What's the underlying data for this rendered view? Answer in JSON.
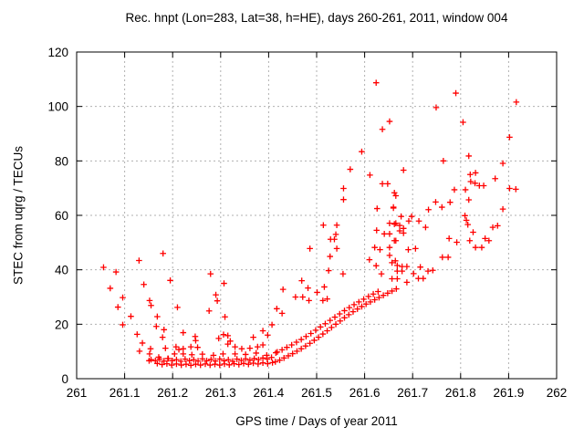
{
  "chart_data": {
    "type": "scatter",
    "title": "Rec. hnpt (Lon=283, Lat=38, h=HE), days 260-261, 2011, window 004",
    "xlabel": "GPS time / Days of year 2011",
    "ylabel": "STEC from uqrg / TECUs",
    "xlim": [
      261,
      262
    ],
    "ylim": [
      0,
      120
    ],
    "xtick_values": [
      261,
      261.1,
      261.2,
      261.3,
      261.4,
      261.5,
      261.6,
      261.7,
      261.8,
      261.9,
      262
    ],
    "xtick_labels": [
      "261",
      "261.1",
      "261.2",
      "261.3",
      "261.4",
      "261.5",
      "261.6",
      "261.7",
      "261.8",
      "261.9",
      "262"
    ],
    "ytick_values": [
      0,
      20,
      40,
      60,
      80,
      100,
      120
    ],
    "ytick_labels": [
      "0",
      "20",
      "40",
      "60",
      "80",
      "100",
      "120"
    ],
    "grid": true,
    "legend": "none",
    "marker": "plus",
    "marker_color": "#ff0000",
    "grid_color": "#b0b0b0",
    "frame_color": "#000000",
    "series": [
      {
        "name": "STEC",
        "points": [
          [
            261.056,
            40.9
          ],
          [
            261.082,
            39.2
          ],
          [
            261.07,
            33.2
          ],
          [
            261.086,
            26.3
          ],
          [
            261.096,
            29.8
          ],
          [
            261.096,
            19.8
          ],
          [
            261.113,
            22.9
          ],
          [
            261.126,
            16.3
          ],
          [
            261.137,
            13.1
          ],
          [
            261.131,
            10.1
          ],
          [
            261.13,
            43.4
          ],
          [
            261.14,
            34.6
          ],
          [
            261.152,
            28.7
          ],
          [
            261.155,
            26.9
          ],
          [
            261.168,
            22.8
          ],
          [
            261.166,
            19.2
          ],
          [
            261.182,
            18.0
          ],
          [
            261.179,
            15.2
          ],
          [
            261.18,
            46.0
          ],
          [
            261.195,
            36.1
          ],
          [
            261.21,
            26.2
          ],
          [
            261.222,
            16.9
          ],
          [
            261.248,
            14.0
          ],
          [
            261.252,
            11.5
          ],
          [
            261.279,
            38.5
          ],
          [
            261.29,
            30.8
          ],
          [
            261.293,
            28.6
          ],
          [
            261.276,
            24.9
          ],
          [
            261.307,
            35.0
          ],
          [
            261.309,
            22.7
          ],
          [
            261.306,
            16.2
          ],
          [
            261.315,
            15.8
          ],
          [
            261.32,
            13.8
          ],
          [
            261.315,
            12.7
          ],
          [
            261.152,
            9.1
          ],
          [
            261.151,
            6.6
          ],
          [
            261.171,
            7.9
          ],
          [
            261.191,
            7.4
          ],
          [
            261.204,
            9.1
          ],
          [
            261.213,
            10.7
          ],
          [
            261.222,
            9.1
          ],
          [
            261.305,
            9.1
          ],
          [
            261.33,
            9.1
          ],
          [
            261.154,
            11.0
          ],
          [
            261.185,
            11.2
          ],
          [
            261.207,
            11.7
          ],
          [
            261.222,
            11.0
          ],
          [
            261.238,
            11.7
          ],
          [
            261.33,
            11.7
          ],
          [
            261.344,
            11.0
          ],
          [
            261.361,
            11.2
          ],
          [
            261.377,
            11.7
          ],
          [
            261.388,
            12.4
          ],
          [
            261.415,
            9.5
          ],
          [
            261.24,
            8.8
          ],
          [
            261.262,
            9.0
          ],
          [
            261.285,
            8.6
          ],
          [
            261.352,
            8.9
          ],
          [
            261.374,
            9.4
          ],
          [
            261.396,
            8.6
          ],
          [
            261.247,
            15.5
          ],
          [
            261.296,
            14.8
          ],
          [
            261.368,
            15.2
          ],
          [
            261.398,
            16.0
          ],
          [
            261.155,
            7.0
          ],
          [
            261.164,
            6.6
          ],
          [
            261.173,
            7.2
          ],
          [
            261.182,
            6.5
          ],
          [
            261.19,
            7.4
          ],
          [
            261.199,
            6.6
          ],
          [
            261.208,
            7.0
          ],
          [
            261.217,
            6.4
          ],
          [
            261.226,
            7.2
          ],
          [
            261.235,
            6.6
          ],
          [
            261.244,
            7.0
          ],
          [
            261.253,
            6.5
          ],
          [
            261.262,
            7.3
          ],
          [
            261.271,
            6.6
          ],
          [
            261.28,
            7.1
          ],
          [
            261.289,
            6.5
          ],
          [
            261.298,
            7.2
          ],
          [
            261.307,
            6.6
          ],
          [
            261.316,
            7.0
          ],
          [
            261.325,
            6.4
          ],
          [
            261.334,
            7.2
          ],
          [
            261.343,
            6.7
          ],
          [
            261.352,
            7.3
          ],
          [
            261.361,
            6.8
          ],
          [
            261.37,
            7.4
          ],
          [
            261.379,
            7.0
          ],
          [
            261.388,
            7.6
          ],
          [
            261.397,
            7.2
          ],
          [
            261.406,
            7.8
          ],
          [
            261.168,
            5.6
          ],
          [
            261.178,
            5.2
          ],
          [
            261.188,
            5.5
          ],
          [
            261.198,
            5.0
          ],
          [
            261.208,
            5.4
          ],
          [
            261.218,
            5.0
          ],
          [
            261.228,
            5.3
          ],
          [
            261.238,
            4.9
          ],
          [
            261.248,
            5.3
          ],
          [
            261.258,
            5.0
          ],
          [
            261.268,
            5.4
          ],
          [
            261.278,
            5.0
          ],
          [
            261.288,
            5.3
          ],
          [
            261.298,
            5.0
          ],
          [
            261.308,
            5.4
          ],
          [
            261.318,
            5.1
          ],
          [
            261.328,
            5.5
          ],
          [
            261.338,
            5.2
          ],
          [
            261.348,
            5.6
          ],
          [
            261.358,
            5.3
          ],
          [
            261.368,
            5.7
          ],
          [
            261.378,
            5.4
          ],
          [
            261.388,
            5.8
          ],
          [
            261.398,
            5.5
          ],
          [
            261.408,
            5.9
          ],
          [
            261.414,
            6.2
          ],
          [
            261.423,
            6.8
          ],
          [
            261.432,
            7.6
          ],
          [
            261.441,
            8.4
          ],
          [
            261.45,
            9.2
          ],
          [
            261.459,
            10.1
          ],
          [
            261.468,
            11.0
          ],
          [
            261.477,
            12.0
          ],
          [
            261.486,
            13.0
          ],
          [
            261.495,
            14.1
          ],
          [
            261.504,
            15.2
          ],
          [
            261.513,
            16.4
          ],
          [
            261.522,
            17.6
          ],
          [
            261.531,
            18.8
          ],
          [
            261.54,
            20.0
          ],
          [
            261.549,
            21.2
          ],
          [
            261.558,
            22.4
          ],
          [
            261.567,
            23.5
          ],
          [
            261.576,
            24.6
          ],
          [
            261.585,
            25.6
          ],
          [
            261.594,
            26.5
          ],
          [
            261.603,
            27.4
          ],
          [
            261.612,
            28.2
          ],
          [
            261.621,
            29.0
          ],
          [
            261.63,
            29.8
          ],
          [
            261.639,
            30.6
          ],
          [
            261.648,
            31.4
          ],
          [
            261.657,
            32.2
          ],
          [
            261.666,
            33.0
          ],
          [
            261.418,
            9.8
          ],
          [
            261.428,
            10.6
          ],
          [
            261.438,
            11.5
          ],
          [
            261.448,
            12.4
          ],
          [
            261.458,
            13.4
          ],
          [
            261.468,
            14.4
          ],
          [
            261.478,
            15.5
          ],
          [
            261.488,
            16.6
          ],
          [
            261.498,
            17.8
          ],
          [
            261.508,
            19.0
          ],
          [
            261.518,
            20.2
          ],
          [
            261.528,
            21.4
          ],
          [
            261.538,
            22.6
          ],
          [
            261.548,
            23.8
          ],
          [
            261.558,
            25.0
          ],
          [
            261.568,
            26.1
          ],
          [
            261.578,
            27.2
          ],
          [
            261.588,
            28.2
          ],
          [
            261.598,
            29.2
          ],
          [
            261.608,
            30.2
          ],
          [
            261.618,
            31.1
          ],
          [
            261.628,
            32.0
          ],
          [
            261.43,
            32.8
          ],
          [
            261.469,
            36.0
          ],
          [
            261.482,
            33.3
          ],
          [
            261.501,
            31.7
          ],
          [
            261.516,
            33.7
          ],
          [
            261.522,
            29.3
          ],
          [
            261.513,
            28.7
          ],
          [
            261.456,
            30.0
          ],
          [
            261.471,
            30.0
          ],
          [
            261.484,
            28.7
          ],
          [
            261.417,
            25.7
          ],
          [
            261.428,
            24.0
          ],
          [
            261.407,
            19.8
          ],
          [
            261.388,
            17.6
          ],
          [
            261.525,
            39.7
          ],
          [
            261.555,
            38.5
          ],
          [
            261.528,
            44.9
          ],
          [
            261.61,
            43.7
          ],
          [
            261.624,
            41.5
          ],
          [
            261.635,
            38.5
          ],
          [
            261.652,
            45.3
          ],
          [
            261.664,
            43.3
          ],
          [
            261.657,
            42.6
          ],
          [
            261.668,
            41.6
          ],
          [
            261.678,
            41.2
          ],
          [
            261.688,
            41.2
          ],
          [
            261.668,
            39.5
          ],
          [
            261.678,
            39.5
          ],
          [
            261.657,
            36.7
          ],
          [
            261.668,
            36.7
          ],
          [
            261.688,
            35.4
          ],
          [
            261.702,
            38.6
          ],
          [
            261.712,
            36.8
          ],
          [
            261.722,
            36.8
          ],
          [
            261.732,
            39.5
          ],
          [
            261.742,
            39.8
          ],
          [
            261.762,
            44.6
          ],
          [
            261.774,
            44.6
          ],
          [
            261.716,
            41.0
          ],
          [
            261.594,
            83.4
          ],
          [
            261.57,
            76.9
          ],
          [
            261.611,
            74.8
          ],
          [
            261.556,
            69.9
          ],
          [
            261.637,
            71.6
          ],
          [
            261.648,
            71.6
          ],
          [
            261.556,
            65.8
          ],
          [
            261.662,
            68.3
          ],
          [
            261.626,
            62.5
          ],
          [
            261.66,
            63.0
          ],
          [
            261.514,
            56.4
          ],
          [
            261.542,
            56.4
          ],
          [
            261.54,
            53.0
          ],
          [
            261.529,
            51.2
          ],
          [
            261.537,
            51.2
          ],
          [
            261.542,
            47.8
          ],
          [
            261.486,
            47.8
          ],
          [
            261.625,
            54.5
          ],
          [
            261.652,
            57.1
          ],
          [
            261.641,
            53.2
          ],
          [
            261.652,
            53.2
          ],
          [
            261.662,
            50.7
          ],
          [
            261.621,
            48.2
          ],
          [
            261.632,
            47.4
          ],
          [
            261.652,
            48.2
          ],
          [
            261.662,
            56.8
          ],
          [
            261.624,
            108.7
          ],
          [
            261.652,
            94.5
          ],
          [
            261.637,
            91.6
          ],
          [
            261.79,
            104.9
          ],
          [
            261.749,
            99.6
          ],
          [
            261.916,
            101.6
          ],
          [
            261.805,
            94.2
          ],
          [
            261.902,
            88.7
          ],
          [
            261.764,
            80.0
          ],
          [
            261.817,
            81.8
          ],
          [
            261.888,
            79.1
          ],
          [
            261.681,
            76.6
          ],
          [
            261.82,
            75.0
          ],
          [
            261.831,
            75.6
          ],
          [
            261.821,
            72.4
          ],
          [
            261.83,
            71.8
          ],
          [
            261.839,
            70.9
          ],
          [
            261.848,
            70.9
          ],
          [
            261.872,
            73.5
          ],
          [
            261.81,
            69.4
          ],
          [
            261.787,
            69.4
          ],
          [
            261.902,
            69.9
          ],
          [
            261.915,
            69.6
          ],
          [
            261.817,
            65.7
          ],
          [
            261.748,
            64.9
          ],
          [
            261.761,
            63.0
          ],
          [
            261.778,
            64.8
          ],
          [
            261.733,
            62.1
          ],
          [
            261.888,
            62.3
          ],
          [
            261.698,
            59.6
          ],
          [
            261.713,
            57.9
          ],
          [
            261.727,
            55.6
          ],
          [
            261.809,
            59.9
          ],
          [
            261.812,
            58.2
          ],
          [
            261.815,
            56.6
          ],
          [
            261.826,
            53.8
          ],
          [
            261.867,
            55.6
          ],
          [
            261.851,
            51.5
          ],
          [
            261.877,
            56.2
          ],
          [
            261.831,
            48.2
          ],
          [
            261.844,
            48.2
          ],
          [
            261.859,
            50.7
          ],
          [
            261.776,
            51.5
          ],
          [
            261.792,
            50.1
          ],
          [
            261.819,
            50.7
          ],
          [
            261.691,
            47.4
          ],
          [
            261.706,
            47.8
          ],
          [
            261.665,
            67.2
          ],
          [
            261.66,
            62.7
          ],
          [
            261.665,
            57.1
          ],
          [
            261.673,
            56.3
          ],
          [
            261.681,
            55.2
          ],
          [
            261.673,
            54.3
          ],
          [
            261.681,
            53.5
          ],
          [
            261.665,
            50.7
          ],
          [
            261.676,
            59.6
          ],
          [
            261.692,
            57.9
          ]
        ]
      }
    ]
  }
}
